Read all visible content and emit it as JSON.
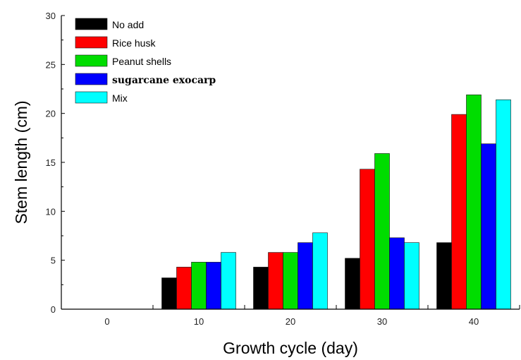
{
  "chart_data": {
    "type": "bar",
    "title": "",
    "xlabel": "Growth cycle (day)",
    "ylabel": "Stem length (cm)",
    "categories": [
      "0",
      "10",
      "20",
      "30",
      "40"
    ],
    "ylim": [
      0,
      30
    ],
    "yticks": [
      "0",
      "5",
      "10",
      "15",
      "20",
      "25",
      "30"
    ],
    "grid": false,
    "legend_position": "top-left",
    "series": [
      {
        "name": "No add",
        "color": "#000000",
        "values": [
          0,
          3.2,
          4.3,
          5.2,
          6.8
        ]
      },
      {
        "name": "Rice husk",
        "color": "#ff0000",
        "values": [
          0,
          4.3,
          5.8,
          14.3,
          19.9
        ]
      },
      {
        "name": "Peanut shells",
        "color": "#00dd00",
        "values": [
          0,
          4.8,
          5.8,
          15.9,
          21.9
        ]
      },
      {
        "name": "sugarcane exocarp",
        "color": "#0000ff",
        "values": [
          0,
          4.8,
          6.8,
          7.3,
          16.9
        ]
      },
      {
        "name": "Mix",
        "color": "#00ffff",
        "values": [
          0,
          5.8,
          7.8,
          6.8,
          21.4
        ]
      }
    ]
  }
}
